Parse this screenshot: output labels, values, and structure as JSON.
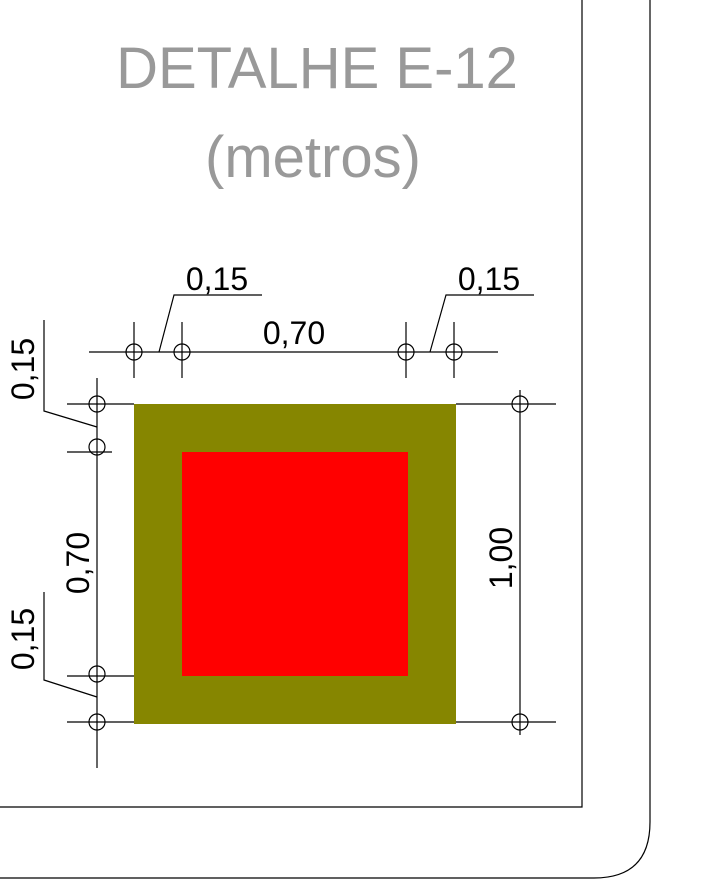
{
  "title": {
    "line1": "DETALHE E-12",
    "line2": "(metros)"
  },
  "dimensions": {
    "top_left_offset": "0,15",
    "top_span": "0,70",
    "top_right_offset": "0,15",
    "left_top_offset": "0,15",
    "left_span": "0,70",
    "left_bottom_offset": "0,15",
    "right_total": "1,00"
  },
  "colors": {
    "title_text": "#999999",
    "outer_fill": "#868600",
    "inner_fill": "#ff0000",
    "lines": "#000000"
  }
}
